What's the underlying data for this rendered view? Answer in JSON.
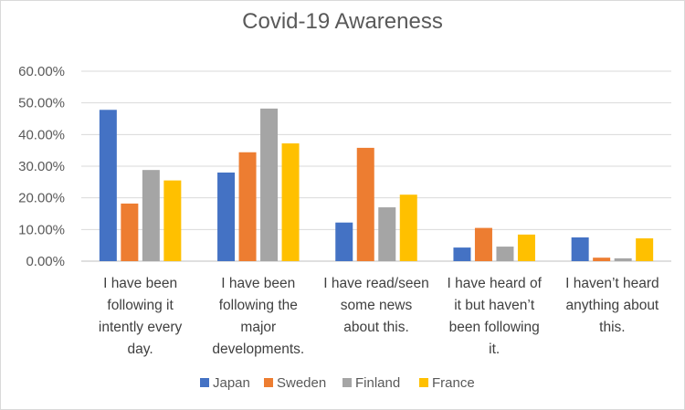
{
  "chart_data": {
    "type": "bar",
    "title": "Covid-19 Awareness",
    "xlabel": "",
    "ylabel": "",
    "ylim": [
      0,
      0.6
    ],
    "yticks": [
      "0.00%",
      "10.00%",
      "20.00%",
      "30.00%",
      "40.00%",
      "50.00%",
      "60.00%"
    ],
    "grid": true,
    "legend_position": "bottom",
    "categories": [
      [
        "I have been",
        "following it",
        "intently every",
        "day."
      ],
      [
        "I have been",
        "following the",
        "major",
        "developments."
      ],
      [
        "I have read/seen",
        "some news",
        "about this."
      ],
      [
        "I have heard of",
        "it but haven’t",
        "been following",
        "it."
      ],
      [
        "I haven’t heard",
        "anything about",
        "this."
      ]
    ],
    "series": [
      {
        "name": "Japan",
        "color": "#4472C4",
        "values": [
          0.478,
          0.28,
          0.122,
          0.043,
          0.075
        ]
      },
      {
        "name": "Sweden",
        "color": "#ED7D31",
        "values": [
          0.182,
          0.344,
          0.358,
          0.105,
          0.011
        ]
      },
      {
        "name": "Finland",
        "color": "#A5A5A5",
        "values": [
          0.288,
          0.482,
          0.17,
          0.046,
          0.009
        ]
      },
      {
        "name": "France",
        "color": "#FFC000",
        "values": [
          0.255,
          0.372,
          0.21,
          0.084,
          0.072
        ]
      }
    ]
  }
}
